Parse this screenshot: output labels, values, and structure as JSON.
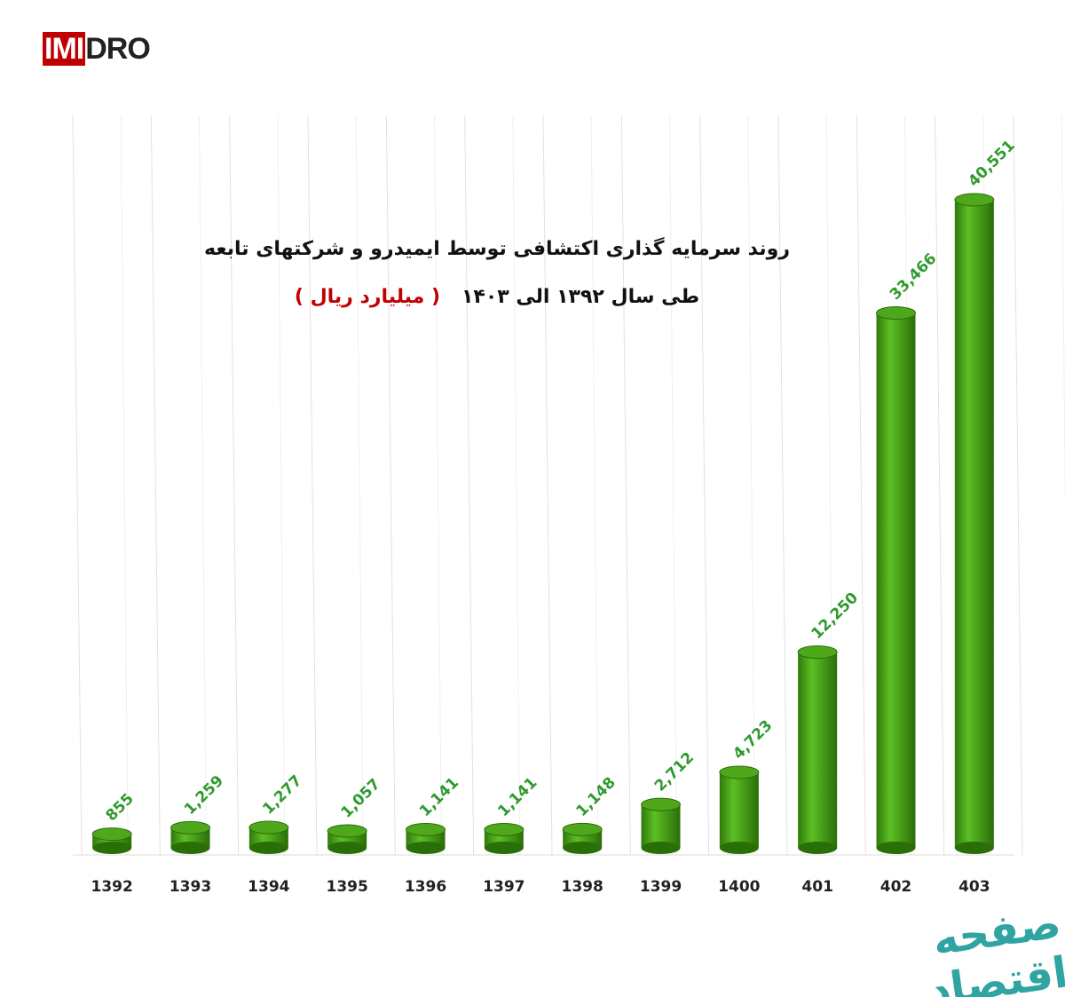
{
  "logo": {
    "part1": "IMI",
    "part2": "DRO"
  },
  "watermark": "صفحه اقتصاد",
  "chart_data": {
    "type": "bar",
    "title": "روند سرمایه گذاری اکتشافی توسط ایمیدرو و شرکتهای تابعه",
    "subtitle": "طی سال ۱۳۹۲ الی ۱۴۰۳",
    "unit": "( میلیارد ریال )",
    "categories": [
      "1392",
      "1393",
      "1394",
      "1395",
      "1396",
      "1397",
      "1398",
      "1399",
      "1400",
      "401",
      "402",
      "403"
    ],
    "values": [
      855,
      1259,
      1277,
      1057,
      1141,
      1141,
      1148,
      2712,
      4723,
      12250,
      33466,
      40551
    ],
    "value_labels": [
      "855",
      "1,259",
      "1,277",
      "1,057",
      "1,141",
      "1,141",
      "1,148",
      "2,712",
      "4,723",
      "12,250",
      "33,466",
      "40,551"
    ],
    "color": "#3f9a12"
  }
}
